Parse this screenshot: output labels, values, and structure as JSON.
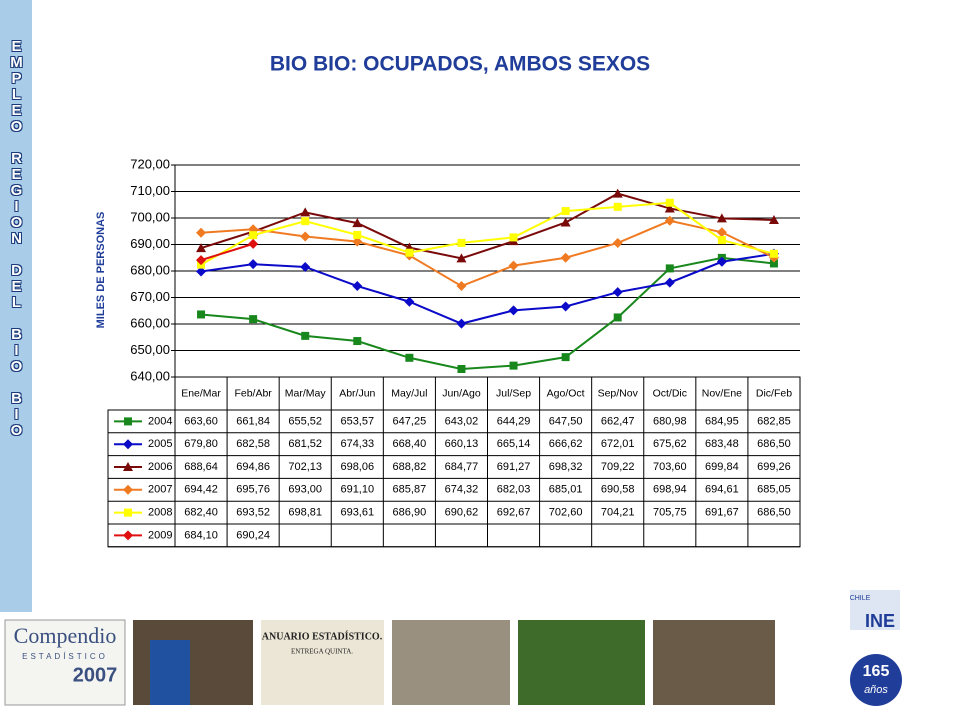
{
  "side_label": "EMPLEO REGION DEL BIO BIO",
  "footer": {
    "compendio": "Compendio",
    "compendio_sub": "ESTADÍSTICO",
    "compendio_year": "2007",
    "anuario": "ANUARIO ESTADÍSTICO.",
    "anuario_sub": "ENTREGA QUINTA.",
    "ine": "INE",
    "chile": "CHILE",
    "anos_number": "165",
    "anos_word": "años"
  },
  "chart_data": {
    "type": "line",
    "title": "BIO BIO: OCUPADOS, AMBOS SEXOS",
    "y_label": "MILES DE PERSONAS",
    "categories": [
      "Ene/Mar",
      "Feb/Abr",
      "Mar/May",
      "Abr/Jun",
      "May/Jul",
      "Jun/Ago",
      "Jul/Sep",
      "Ago/Oct",
      "Sep/Nov",
      "Oct/Dic",
      "Nov/Ene",
      "Dic/Feb"
    ],
    "ylim": [
      640,
      720
    ],
    "yticks": [
      {
        "value": 640,
        "label": "640,00"
      },
      {
        "value": 650,
        "label": "650,00"
      },
      {
        "value": 660,
        "label": "660,00"
      },
      {
        "value": 670,
        "label": "670,00"
      },
      {
        "value": 680,
        "label": "680,00"
      },
      {
        "value": 690,
        "label": "690,00"
      },
      {
        "value": 700,
        "label": "700,00"
      },
      {
        "value": 710,
        "label": "710,00"
      },
      {
        "value": 720,
        "label": "720,00"
      }
    ],
    "grid": true,
    "series": [
      {
        "name": "2004",
        "color": "#18881c",
        "marker": "square",
        "values": [
          663.6,
          661.84,
          655.52,
          653.57,
          647.25,
          643.02,
          644.29,
          647.5,
          662.47,
          680.98,
          684.95,
          682.85
        ],
        "value_labels": [
          "663,60",
          "661,84",
          "655,52",
          "653,57",
          "647,25",
          "643,02",
          "644,29",
          "647,50",
          "662,47",
          "680,98",
          "684,95",
          "682,85"
        ]
      },
      {
        "name": "2005",
        "color": "#0a0ac8",
        "marker": "diamond",
        "values": [
          679.8,
          682.58,
          681.52,
          674.33,
          668.4,
          660.13,
          665.14,
          666.62,
          672.01,
          675.62,
          683.48,
          686.5
        ],
        "value_labels": [
          "679,80",
          "682,58",
          "681,52",
          "674,33",
          "668,40",
          "660,13",
          "665,14",
          "666,62",
          "672,01",
          "675,62",
          "683,48",
          "686,50"
        ]
      },
      {
        "name": "2006",
        "color": "#7a0a0a",
        "marker": "triangle",
        "values": [
          688.64,
          694.86,
          702.13,
          698.06,
          688.82,
          684.77,
          691.27,
          698.32,
          709.22,
          703.6,
          699.84,
          699.26
        ],
        "value_labels": [
          "688,64",
          "694,86",
          "702,13",
          "698,06",
          "688,82",
          "684,77",
          "691,27",
          "698,32",
          "709,22",
          "703,60",
          "699,84",
          "699,26"
        ]
      },
      {
        "name": "2007",
        "color": "#f07a22",
        "marker": "diamond",
        "values": [
          694.42,
          695.76,
          693.0,
          691.1,
          685.87,
          674.32,
          682.03,
          685.01,
          690.58,
          698.94,
          694.61,
          685.05
        ],
        "value_labels": [
          "694,42",
          "695,76",
          "693,00",
          "691,10",
          "685,87",
          "674,32",
          "682,03",
          "685,01",
          "690,58",
          "698,94",
          "694,61",
          "685,05"
        ]
      },
      {
        "name": "2008",
        "color": "#ffff00",
        "marker": "square",
        "values": [
          682.4,
          693.52,
          698.81,
          693.61,
          686.9,
          690.62,
          692.67,
          702.6,
          704.21,
          705.75,
          691.67,
          686.5
        ],
        "value_labels": [
          "682,40",
          "693,52",
          "698,81",
          "693,61",
          "686,90",
          "690,62",
          "692,67",
          "702,60",
          "704,21",
          "705,75",
          "691,67",
          "686,50"
        ]
      },
      {
        "name": "2009",
        "color": "#e01010",
        "marker": "diamond",
        "values": [
          684.1,
          690.24,
          null,
          null,
          null,
          null,
          null,
          null,
          null,
          null,
          null,
          null
        ],
        "value_labels": [
          "684,10",
          "690,24",
          null,
          null,
          null,
          null,
          null,
          null,
          null,
          null,
          null,
          null
        ]
      }
    ]
  }
}
